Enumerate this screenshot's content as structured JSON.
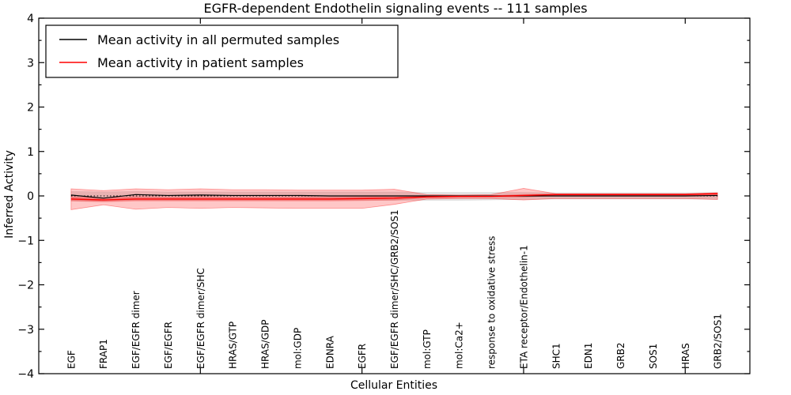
{
  "figure": {
    "background": "#ffffff",
    "frame_color": "#000000"
  },
  "chart_data": {
    "type": "line",
    "title": "EGFR-dependent Endothelin signaling events -- 111 samples",
    "xlabel": "Cellular Entities",
    "ylabel": "Inferred Activity",
    "ylim": [
      -4,
      4
    ],
    "xlim": [
      0,
      22
    ],
    "ytick_major_step": 1,
    "ytick_minor_step": 0.5,
    "xtick_major_positions": [
      5,
      10,
      15,
      20
    ],
    "grid": false,
    "legend_position": "upper-left",
    "categories": [
      "EGF",
      "FRAP1",
      "EGF/EGFR dimer",
      "EGF/EGFR",
      "EGF/EGFR dimer/SHC",
      "HRAS/GTP",
      "HRAS/GDP",
      "mol:GDP",
      "EDNRA",
      "EGFR",
      "EGF/EGFR dimer/SHC/GRB2/SOS1",
      "mol:GTP",
      "mol:Ca2+",
      "response to oxidative stress",
      "ETA receptor/Endothelin-1",
      "SHC1",
      "EDN1",
      "GRB2",
      "SOS1",
      "HRAS",
      "GRB2/SOS1"
    ],
    "series": [
      {
        "name": "Mean activity in all permuted samples",
        "color": "#000000",
        "line_width": 1.2,
        "values": [
          0.02,
          -0.05,
          0.03,
          0.01,
          0.02,
          0.01,
          0.01,
          0.01,
          0.0,
          0.0,
          0.0,
          0.0,
          0.0,
          0.0,
          0.0,
          0.0,
          0.0,
          0.0,
          0.0,
          0.0,
          0.01
        ]
      },
      {
        "name": "Mean activity in patient samples",
        "color": "#ff0000",
        "line_width": 1.4,
        "values": [
          -0.07,
          -0.09,
          -0.07,
          -0.07,
          -0.07,
          -0.07,
          -0.07,
          -0.07,
          -0.07,
          -0.06,
          -0.05,
          -0.02,
          -0.01,
          -0.01,
          0.01,
          0.03,
          0.03,
          0.03,
          0.03,
          0.03,
          0.05
        ]
      }
    ],
    "bands": [
      {
        "name": "permuted-samples-range",
        "color": "#000000",
        "opacity": 0.11,
        "edge_opacity": 0.07,
        "upper": [
          0.1,
          0.09,
          0.1,
          0.09,
          0.09,
          0.09,
          0.09,
          0.09,
          0.09,
          0.09,
          0.09,
          0.08,
          0.08,
          0.08,
          0.08,
          0.07,
          0.07,
          0.07,
          0.07,
          0.07,
          0.08
        ],
        "lower": [
          -0.11,
          -0.12,
          -0.1,
          -0.1,
          -0.1,
          -0.1,
          -0.1,
          -0.1,
          -0.1,
          -0.1,
          -0.1,
          -0.1,
          -0.1,
          -0.09,
          -0.08,
          -0.07,
          -0.07,
          -0.07,
          -0.07,
          -0.07,
          -0.08
        ]
      },
      {
        "name": "patient-samples-outer-range",
        "color": "#ff0000",
        "opacity": 0.22,
        "edge_opacity": 0.38,
        "upper": [
          0.16,
          0.12,
          0.16,
          0.14,
          0.16,
          0.14,
          0.14,
          0.13,
          0.13,
          0.13,
          0.15,
          0.03,
          0.02,
          0.03,
          0.17,
          0.05,
          0.05,
          0.05,
          0.05,
          0.05,
          0.07
        ],
        "lower": [
          -0.31,
          -0.2,
          -0.3,
          -0.26,
          -0.28,
          -0.26,
          -0.27,
          -0.28,
          -0.28,
          -0.28,
          -0.19,
          -0.07,
          -0.06,
          -0.06,
          -0.09,
          -0.06,
          -0.06,
          -0.06,
          -0.06,
          -0.06,
          -0.08
        ]
      },
      {
        "name": "patient-samples-inner-range",
        "color": "#ff0000",
        "opacity": 0.28,
        "edge_opacity": 0.0,
        "upper": [
          -0.01,
          -0.04,
          -0.01,
          -0.02,
          -0.01,
          -0.02,
          -0.02,
          -0.02,
          -0.02,
          -0.01,
          0.0,
          0.0,
          0.01,
          0.01,
          0.04,
          0.05,
          0.05,
          0.05,
          0.05,
          0.05,
          0.07
        ],
        "lower": [
          -0.12,
          -0.14,
          -0.12,
          -0.12,
          -0.12,
          -0.12,
          -0.12,
          -0.12,
          -0.12,
          -0.11,
          -0.1,
          -0.05,
          -0.04,
          -0.03,
          -0.03,
          0.0,
          0.0,
          0.0,
          0.0,
          0.0,
          0.02
        ]
      }
    ],
    "zero_line": {
      "y": 0,
      "style": "dotted",
      "color": "#000000"
    }
  }
}
